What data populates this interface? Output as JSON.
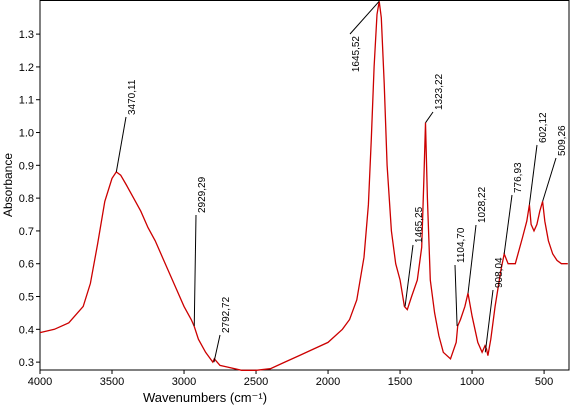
{
  "chart_data": {
    "type": "line",
    "xlabel": "Wavenumbers (cm⁻¹)",
    "ylabel": "Absorbance",
    "xlim": [
      4000,
      320
    ],
    "ylim": [
      0.276,
      1.404
    ],
    "xticks": [
      4000,
      3500,
      3000,
      2500,
      2000,
      1500,
      1000,
      500
    ],
    "yticks": [
      0.3,
      0.4,
      0.5,
      0.6,
      0.7,
      0.8,
      0.9,
      {
        "value": 1,
        "label": "1.0"
      },
      1.1,
      1.2,
      1.3
    ],
    "series": [
      {
        "color": "#cc0000",
        "x": [
          4000,
          3900,
          3800,
          3700,
          3650,
          3600,
          3550,
          3500,
          3470,
          3440,
          3400,
          3350,
          3300,
          3250,
          3200,
          3150,
          3100,
          3050,
          3000,
          2950,
          2930,
          2900,
          2850,
          2800,
          2790,
          2750,
          2700,
          2600,
          2500,
          2400,
          2300,
          2200,
          2100,
          2000,
          1900,
          1850,
          1800,
          1750,
          1720,
          1700,
          1680,
          1660,
          1645,
          1630,
          1610,
          1590,
          1560,
          1530,
          1500,
          1470,
          1450,
          1420,
          1380,
          1350,
          1335,
          1323,
          1310,
          1290,
          1260,
          1230,
          1200,
          1150,
          1110,
          1100,
          1080,
          1050,
          1028,
          1000,
          960,
          930,
          910,
          900,
          890,
          870,
          840,
          800,
          777,
          750,
          700,
          650,
          620,
          602,
          590,
          570,
          550,
          530,
          510,
          495,
          470,
          440,
          410,
          380,
          335
        ],
        "y": [
          0.39,
          0.4,
          0.42,
          0.47,
          0.54,
          0.66,
          0.79,
          0.86,
          0.88,
          0.87,
          0.84,
          0.8,
          0.76,
          0.71,
          0.67,
          0.62,
          0.57,
          0.52,
          0.47,
          0.43,
          0.41,
          0.37,
          0.33,
          0.3,
          0.31,
          0.29,
          0.285,
          0.275,
          0.275,
          0.28,
          0.3,
          0.32,
          0.34,
          0.36,
          0.4,
          0.43,
          0.49,
          0.62,
          0.78,
          0.98,
          1.2,
          1.36,
          1.4,
          1.35,
          1.15,
          0.9,
          0.7,
          0.6,
          0.55,
          0.47,
          0.46,
          0.5,
          0.55,
          0.65,
          0.85,
          1.03,
          0.8,
          0.55,
          0.45,
          0.38,
          0.33,
          0.31,
          0.36,
          0.41,
          0.43,
          0.47,
          0.51,
          0.44,
          0.36,
          0.33,
          0.35,
          0.34,
          0.32,
          0.37,
          0.47,
          0.58,
          0.63,
          0.6,
          0.6,
          0.68,
          0.73,
          0.78,
          0.72,
          0.7,
          0.72,
          0.76,
          0.79,
          0.73,
          0.67,
          0.63,
          0.61,
          0.6,
          0.6
        ]
      }
    ],
    "annotations": [
      {
        "text": "3470,11",
        "x": 3470,
        "y": 0.88
      },
      {
        "text": "2929,29",
        "x": 2929,
        "y": 0.41
      },
      {
        "text": "2792,72",
        "x": 2792,
        "y": 0.3
      },
      {
        "text": "1645,52",
        "x": 1645,
        "y": 1.4
      },
      {
        "text": "1465,25",
        "x": 1465,
        "y": 0.47
      },
      {
        "text": "1323,22",
        "x": 1323,
        "y": 1.03
      },
      {
        "text": "1104,70",
        "x": 1104,
        "y": 0.41
      },
      {
        "text": "1028,22",
        "x": 1028,
        "y": 0.51
      },
      {
        "text": "908,04",
        "x": 908,
        "y": 0.33
      },
      {
        "text": "776,93",
        "x": 777,
        "y": 0.63
      },
      {
        "text": "602,12",
        "x": 602,
        "y": 0.78
      },
      {
        "text": "509,26",
        "x": 510,
        "y": 0.79
      }
    ]
  }
}
